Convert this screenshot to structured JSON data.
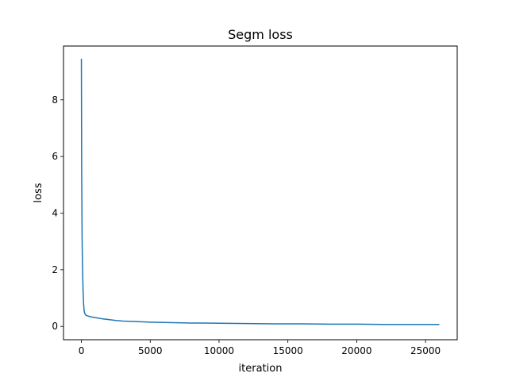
{
  "chart_data": {
    "type": "line",
    "title": "Segm loss",
    "xlabel": "iteration",
    "ylabel": "loss",
    "xlim": [
      -1300,
      27300
    ],
    "ylim": [
      -0.47,
      9.9
    ],
    "xticks": [
      0,
      5000,
      10000,
      15000,
      20000,
      25000
    ],
    "xtick_labels": [
      "0",
      "5000",
      "10000",
      "15000",
      "20000",
      "25000"
    ],
    "yticks": [
      0,
      2,
      4,
      6,
      8
    ],
    "ytick_labels": [
      "0",
      "2",
      "4",
      "6",
      "8"
    ],
    "grid": false,
    "legend": "none",
    "series": [
      {
        "color": "#1f77b4",
        "x": [
          0,
          20,
          50,
          80,
          120,
          160,
          200,
          250,
          300,
          400,
          600,
          800,
          1000,
          1500,
          2000,
          2500,
          3000,
          4000,
          5000,
          6000,
          7000,
          8000,
          9000,
          10000,
          12000,
          14000,
          16000,
          18000,
          20000,
          22000,
          24000,
          26000
        ],
        "y": [
          9.45,
          5.5,
          3.2,
          2.1,
          1.3,
          0.8,
          0.55,
          0.45,
          0.41,
          0.38,
          0.35,
          0.33,
          0.31,
          0.27,
          0.24,
          0.21,
          0.19,
          0.17,
          0.15,
          0.14,
          0.13,
          0.12,
          0.12,
          0.11,
          0.1,
          0.09,
          0.09,
          0.08,
          0.08,
          0.07,
          0.07,
          0.07
        ]
      }
    ]
  }
}
